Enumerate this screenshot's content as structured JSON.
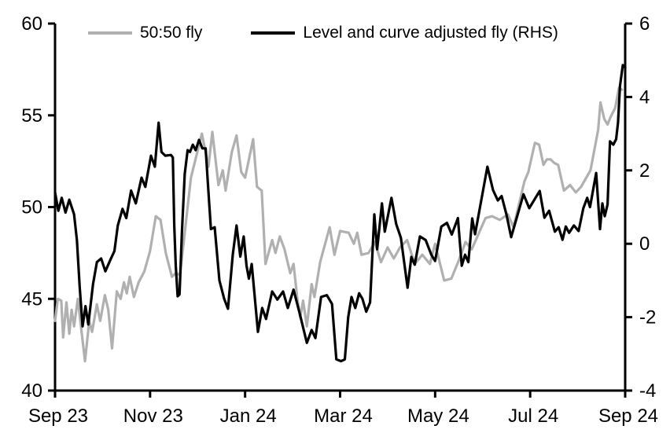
{
  "chart_data": {
    "type": "line",
    "title": "",
    "background": "#ffffff",
    "axis_color": "#000000",
    "x_axis": {
      "tick_months": [
        0,
        2,
        4,
        6,
        8,
        10,
        12
      ],
      "labels": [
        "Sep 23",
        "Nov 23",
        "Jan 24",
        "Mar 24",
        "May 24",
        "Jul 24",
        "Sep 24"
      ],
      "range_months": [
        0,
        12
      ]
    },
    "left_axis": {
      "ticks": [
        40,
        45,
        50,
        55,
        60
      ],
      "range": [
        40,
        60
      ]
    },
    "right_axis": {
      "ticks": [
        -4,
        -2,
        0,
        2,
        4,
        6
      ],
      "range": [
        -4,
        6
      ]
    },
    "legend": [
      {
        "label": "50:50 fly",
        "color": "#b0b0b0"
      },
      {
        "label": "Level and curve adjusted fly (RHS)",
        "color": "#000000"
      }
    ],
    "series": [
      {
        "name": "50:50 fly",
        "axis": "left",
        "color": "#b0b0b0",
        "width": 3.2,
        "points": [
          [
            0.0,
            43.8
          ],
          [
            0.06,
            45.0
          ],
          [
            0.13,
            44.9
          ],
          [
            0.17,
            42.9
          ],
          [
            0.24,
            44.8
          ],
          [
            0.3,
            43.1
          ],
          [
            0.35,
            44.4
          ],
          [
            0.4,
            43.5
          ],
          [
            0.48,
            45.0
          ],
          [
            0.55,
            43.4
          ],
          [
            0.63,
            41.6
          ],
          [
            0.72,
            43.8
          ],
          [
            0.78,
            43.2
          ],
          [
            0.88,
            44.7
          ],
          [
            0.95,
            43.8
          ],
          [
            1.05,
            45.2
          ],
          [
            1.12,
            44.4
          ],
          [
            1.2,
            42.3
          ],
          [
            1.3,
            45.4
          ],
          [
            1.38,
            45.0
          ],
          [
            1.45,
            45.9
          ],
          [
            1.51,
            45.3
          ],
          [
            1.57,
            46.2
          ],
          [
            1.66,
            45.1
          ],
          [
            1.76,
            45.9
          ],
          [
            1.88,
            46.5
          ],
          [
            2.0,
            47.6
          ],
          [
            2.12,
            49.5
          ],
          [
            2.22,
            49.3
          ],
          [
            2.33,
            47.5
          ],
          [
            2.46,
            46.2
          ],
          [
            2.54,
            46.4
          ],
          [
            2.63,
            46.3
          ],
          [
            2.86,
            51.6
          ],
          [
            3.09,
            54.0
          ],
          [
            3.23,
            52.2
          ],
          [
            3.31,
            54.1
          ],
          [
            3.44,
            51.2
          ],
          [
            3.53,
            52.0
          ],
          [
            3.59,
            50.9
          ],
          [
            3.72,
            53.0
          ],
          [
            3.82,
            53.9
          ],
          [
            3.92,
            51.9
          ],
          [
            4.0,
            51.6
          ],
          [
            4.17,
            53.7
          ],
          [
            4.25,
            51.1
          ],
          [
            4.35,
            50.9
          ],
          [
            4.43,
            46.9
          ],
          [
            4.57,
            48.2
          ],
          [
            4.64,
            47.5
          ],
          [
            4.73,
            48.4
          ],
          [
            4.83,
            47.7
          ],
          [
            4.95,
            46.4
          ],
          [
            5.02,
            46.9
          ],
          [
            5.1,
            45.0
          ],
          [
            5.16,
            44.0
          ],
          [
            5.22,
            44.9
          ],
          [
            5.3,
            43.5
          ],
          [
            5.4,
            45.8
          ],
          [
            5.46,
            45.1
          ],
          [
            5.58,
            47.0
          ],
          [
            5.78,
            48.9
          ],
          [
            5.88,
            47.4
          ],
          [
            6.0,
            48.7
          ],
          [
            6.18,
            48.6
          ],
          [
            6.29,
            48.0
          ],
          [
            6.36,
            48.6
          ],
          [
            6.45,
            47.4
          ],
          [
            6.6,
            47.5
          ],
          [
            6.73,
            48.1
          ],
          [
            6.86,
            47.0
          ],
          [
            7.0,
            47.8
          ],
          [
            7.13,
            47.2
          ],
          [
            7.26,
            47.8
          ],
          [
            7.41,
            48.2
          ],
          [
            7.57,
            46.9
          ],
          [
            7.73,
            47.4
          ],
          [
            7.89,
            46.9
          ],
          [
            8.0,
            48.0
          ],
          [
            8.19,
            46.0
          ],
          [
            8.34,
            46.1
          ],
          [
            8.5,
            47.1
          ],
          [
            8.64,
            48.1
          ],
          [
            8.77,
            47.7
          ],
          [
            9.06,
            49.4
          ],
          [
            9.2,
            49.5
          ],
          [
            9.36,
            49.3
          ],
          [
            9.53,
            49.6
          ],
          [
            9.65,
            48.9
          ],
          [
            9.88,
            51.4
          ],
          [
            9.96,
            51.9
          ],
          [
            10.1,
            53.5
          ],
          [
            10.19,
            53.4
          ],
          [
            10.28,
            52.3
          ],
          [
            10.35,
            52.6
          ],
          [
            10.43,
            52.6
          ],
          [
            10.51,
            52.4
          ],
          [
            10.59,
            52.3
          ],
          [
            10.71,
            50.9
          ],
          [
            10.84,
            51.2
          ],
          [
            10.96,
            50.8
          ],
          [
            11.07,
            51.1
          ],
          [
            11.27,
            52.0
          ],
          [
            11.43,
            54.2
          ],
          [
            11.48,
            55.7
          ],
          [
            11.56,
            54.8
          ],
          [
            11.63,
            54.5
          ],
          [
            11.69,
            54.9
          ],
          [
            11.79,
            55.4
          ],
          [
            11.87,
            56.5
          ],
          [
            11.93,
            56.4
          ]
        ]
      },
      {
        "name": "Level and curve adjusted fly (RHS)",
        "axis": "right",
        "color": "#000000",
        "width": 3.2,
        "points": [
          [
            0.0,
            1.4
          ],
          [
            0.07,
            0.9
          ],
          [
            0.14,
            1.25
          ],
          [
            0.22,
            0.85
          ],
          [
            0.3,
            1.2
          ],
          [
            0.4,
            0.8
          ],
          [
            0.46,
            0.1
          ],
          [
            0.52,
            -1.2
          ],
          [
            0.58,
            -2.25
          ],
          [
            0.64,
            -1.7
          ],
          [
            0.7,
            -2.2
          ],
          [
            0.8,
            -1.1
          ],
          [
            0.88,
            -0.5
          ],
          [
            0.97,
            -0.4
          ],
          [
            1.06,
            -0.75
          ],
          [
            1.16,
            -0.45
          ],
          [
            1.25,
            -0.2
          ],
          [
            1.32,
            0.5
          ],
          [
            1.42,
            0.95
          ],
          [
            1.5,
            0.7
          ],
          [
            1.6,
            1.45
          ],
          [
            1.7,
            1.1
          ],
          [
            1.82,
            1.8
          ],
          [
            1.9,
            1.55
          ],
          [
            2.02,
            2.4
          ],
          [
            2.1,
            2.1
          ],
          [
            2.18,
            3.3
          ],
          [
            2.24,
            2.5
          ],
          [
            2.32,
            2.4
          ],
          [
            2.44,
            2.42
          ],
          [
            2.48,
            2.35
          ],
          [
            2.51,
            0.5
          ],
          [
            2.54,
            -0.6
          ],
          [
            2.58,
            -1.43
          ],
          [
            2.62,
            -1.38
          ],
          [
            2.67,
            0.3
          ],
          [
            2.73,
            1.9
          ],
          [
            2.79,
            2.55
          ],
          [
            2.84,
            2.5
          ],
          [
            2.9,
            2.7
          ],
          [
            2.96,
            2.55
          ],
          [
            3.03,
            2.83
          ],
          [
            3.1,
            2.6
          ],
          [
            3.17,
            2.6
          ],
          [
            3.22,
            1.6
          ],
          [
            3.28,
            0.4
          ],
          [
            3.36,
            0.45
          ],
          [
            3.46,
            -1.0
          ],
          [
            3.56,
            -1.5
          ],
          [
            3.64,
            -1.77
          ],
          [
            3.74,
            -0.3
          ],
          [
            3.82,
            0.5
          ],
          [
            3.9,
            -0.35
          ],
          [
            3.97,
            0.2
          ],
          [
            4.03,
            -0.6
          ],
          [
            4.08,
            -0.95
          ],
          [
            4.14,
            -0.55
          ],
          [
            4.27,
            -2.4
          ],
          [
            4.36,
            -1.75
          ],
          [
            4.44,
            -2.05
          ],
          [
            4.57,
            -1.3
          ],
          [
            4.68,
            -1.52
          ],
          [
            4.8,
            -1.3
          ],
          [
            4.9,
            -1.75
          ],
          [
            5.02,
            -1.25
          ],
          [
            5.15,
            -1.9
          ],
          [
            5.3,
            -2.7
          ],
          [
            5.4,
            -2.35
          ],
          [
            5.48,
            -2.57
          ],
          [
            5.6,
            -1.45
          ],
          [
            5.72,
            -1.4
          ],
          [
            5.83,
            -1.64
          ],
          [
            5.92,
            -3.15
          ],
          [
            6.02,
            -3.2
          ],
          [
            6.1,
            -3.15
          ],
          [
            6.17,
            -2.0
          ],
          [
            6.24,
            -1.45
          ],
          [
            6.32,
            -1.75
          ],
          [
            6.4,
            -1.35
          ],
          [
            6.47,
            -1.5
          ],
          [
            6.55,
            -1.85
          ],
          [
            6.63,
            -1.6
          ],
          [
            6.72,
            0.8
          ],
          [
            6.78,
            -0.15
          ],
          [
            6.88,
            1.1
          ],
          [
            6.94,
            0.33
          ],
          [
            7.08,
            1.25
          ],
          [
            7.18,
            0.54
          ],
          [
            7.28,
            0.16
          ],
          [
            7.42,
            -1.2
          ],
          [
            7.5,
            -0.36
          ],
          [
            7.57,
            -0.57
          ],
          [
            7.68,
            0.2
          ],
          [
            7.8,
            0.1
          ],
          [
            7.92,
            -0.3
          ],
          [
            8.0,
            -0.47
          ],
          [
            8.13,
            0.47
          ],
          [
            8.25,
            0.57
          ],
          [
            8.35,
            0.25
          ],
          [
            8.48,
            0.7
          ],
          [
            8.56,
            -0.6
          ],
          [
            8.63,
            -0.3
          ],
          [
            8.7,
            -0.5
          ],
          [
            8.78,
            0.69
          ],
          [
            8.84,
            0.26
          ],
          [
            9.1,
            2.1
          ],
          [
            9.22,
            1.46
          ],
          [
            9.32,
            1.18
          ],
          [
            9.4,
            1.3
          ],
          [
            9.5,
            0.8
          ],
          [
            9.6,
            0.18
          ],
          [
            9.86,
            1.35
          ],
          [
            9.98,
            0.97
          ],
          [
            10.2,
            1.44
          ],
          [
            10.3,
            0.71
          ],
          [
            10.4,
            0.9
          ],
          [
            10.52,
            0.33
          ],
          [
            10.6,
            0.45
          ],
          [
            10.68,
            0.11
          ],
          [
            10.75,
            0.47
          ],
          [
            10.82,
            0.3
          ],
          [
            10.92,
            0.5
          ],
          [
            11.02,
            0.35
          ],
          [
            11.12,
            0.97
          ],
          [
            11.2,
            1.25
          ],
          [
            11.26,
            1.0
          ],
          [
            11.39,
            1.93
          ],
          [
            11.47,
            0.4
          ],
          [
            11.52,
            1.1
          ],
          [
            11.57,
            0.75
          ],
          [
            11.63,
            1.07
          ],
          [
            11.68,
            2.79
          ],
          [
            11.75,
            2.7
          ],
          [
            11.81,
            2.85
          ],
          [
            11.85,
            3.3
          ],
          [
            11.89,
            4.3
          ],
          [
            11.95,
            4.87
          ],
          [
            12.0,
            4.8
          ]
        ]
      }
    ]
  }
}
